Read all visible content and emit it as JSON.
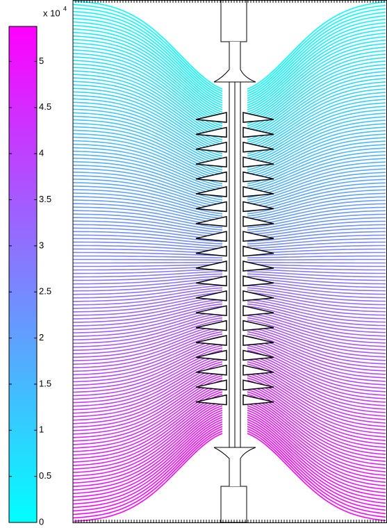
{
  "chart_data": {
    "type": "contour",
    "colormap": [
      "#00ffff",
      "#ff00ff"
    ],
    "clim": [
      0,
      5.38
    ],
    "colorbar_multiplier": {
      "base": "x 10",
      "exponent": "4"
    },
    "colorbar_ticks": [
      0,
      0.5,
      1,
      1.5,
      2,
      2.5,
      3,
      3.5,
      4,
      4.5,
      5
    ]
  }
}
